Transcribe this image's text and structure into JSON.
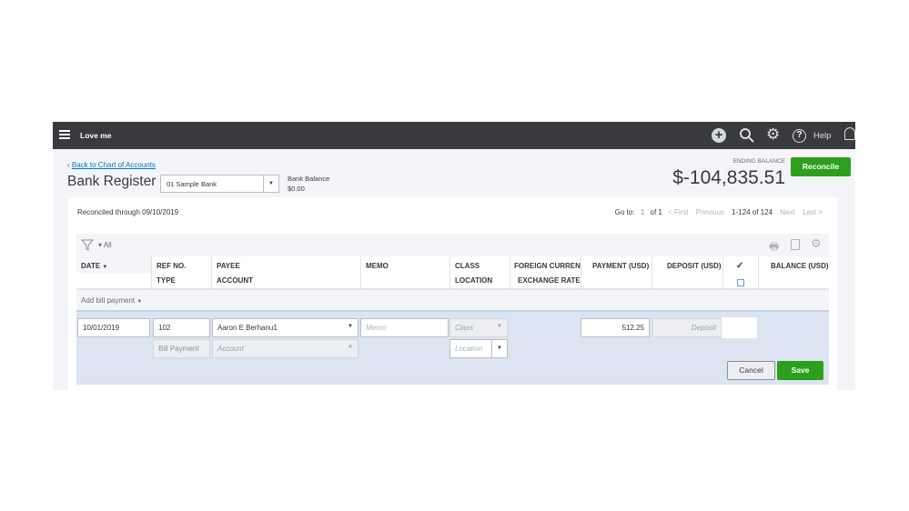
{
  "topbar": {
    "company": "Love me",
    "help": "Help",
    "icons": [
      "menu-icon",
      "plus-icon",
      "search-icon",
      "gear-icon",
      "help-icon",
      "bell-icon"
    ]
  },
  "header": {
    "back_link": "Back to Chart of Accounts",
    "title": "Bank Register",
    "account": "01 Sample Bank",
    "bank_balance_label": "Bank Balance",
    "bank_balance": "$0.00",
    "ending_balance_label": "ENDING BALANCE",
    "ending_balance": "$-104,835.51",
    "reconcile": "Reconcile"
  },
  "toolbar": {
    "reconciled": "Reconciled through 09/10/2019",
    "goto": "Go to:",
    "page": "1",
    "of": "of 1",
    "first": "< First",
    "previous": "Previous",
    "range": "1-124 of 124",
    "next": "Next",
    "last": "Last >",
    "filter": "All"
  },
  "columns": {
    "date": "DATE",
    "ref": "REF NO.",
    "type": "TYPE",
    "payee": "PAYEE",
    "account": "ACCOUNT",
    "memo": "MEMO",
    "class": "CLASS",
    "location": "LOCATION",
    "foreign": "FOREIGN CURRENC",
    "exchange": "EXCHANGE RATE",
    "payment": "PAYMENT (USD)",
    "deposit": "DEPOSIT (USD)",
    "check": "✓",
    "balance": "BALANCE (USD)"
  },
  "add_row": {
    "label": "Add bill payment"
  },
  "edit_row": {
    "date": "10/01/2019",
    "ref": "102",
    "payee": "Aaron E Berhanu1",
    "memo_placeholder": "Memo",
    "class_placeholder": "Class",
    "payment": "512.25",
    "deposit_placeholder": "Deposit",
    "type": "Bill Payment",
    "account_placeholder": "Account",
    "location_placeholder": "Location",
    "cancel": "Cancel",
    "save": "Save"
  },
  "colors": {
    "topbar": "#393a3d",
    "accent_green": "#2ca01c",
    "link": "#0077c5",
    "edit_bg": "#dbe4f0"
  }
}
